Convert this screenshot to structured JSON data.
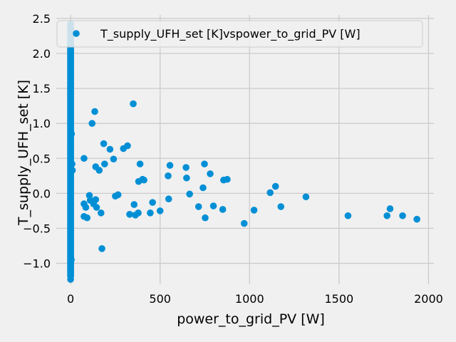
{
  "chart_data": {
    "type": "scatter",
    "xlabel": "power_to_grid_PV [W]",
    "ylabel": "T_supply_UFH_set [K]",
    "xlim": [
      -80,
      2030
    ],
    "ylim": [
      -1.3,
      2.55
    ],
    "xticks": [
      0,
      500,
      1000,
      1500,
      2000
    ],
    "yticks": [
      -1.0,
      -0.5,
      0.0,
      0.5,
      1.0,
      1.5,
      2.0,
      2.5
    ],
    "xtick_labels": [
      "0",
      "500",
      "1000",
      "1500",
      "2000"
    ],
    "ytick_labels": [
      "−1.0",
      "−0.5",
      "0.0",
      "0.5",
      "1.0",
      "1.5",
      "2.0",
      "2.5"
    ],
    "grid": true,
    "legend_position": "top-right",
    "background": "#f0f0f0",
    "grid_color": "#cbcbcb",
    "marker_color": "#008fd5",
    "series": [
      {
        "name": "T_supply_UFH_set [K]vspower_to_grid_PV [W]",
        "points": [
          [
            0,
            2.42
          ],
          [
            0,
            2.33
          ],
          [
            0,
            2.25
          ],
          [
            0,
            2.18
          ],
          [
            0,
            2.1
          ],
          [
            0,
            2.02
          ],
          [
            0,
            1.95
          ],
          [
            0,
            1.87
          ],
          [
            0,
            1.8
          ],
          [
            0,
            1.72
          ],
          [
            0,
            1.65
          ],
          [
            0,
            1.57
          ],
          [
            0,
            1.5
          ],
          [
            0,
            1.42
          ],
          [
            0,
            1.35
          ],
          [
            0,
            1.27
          ],
          [
            0,
            1.2
          ],
          [
            0,
            1.12
          ],
          [
            0,
            1.05
          ],
          [
            0,
            0.97
          ],
          [
            0,
            0.9
          ],
          [
            0,
            0.82
          ],
          [
            0,
            0.75
          ],
          [
            0,
            0.67
          ],
          [
            0,
            0.6
          ],
          [
            0,
            0.52
          ],
          [
            0,
            0.45
          ],
          [
            0,
            0.37
          ],
          [
            0,
            0.3
          ],
          [
            0,
            0.22
          ],
          [
            0,
            0.15
          ],
          [
            0,
            0.07
          ],
          [
            0,
            0.0
          ],
          [
            0,
            -0.08
          ],
          [
            0,
            -0.15
          ],
          [
            0,
            -0.23
          ],
          [
            0,
            -0.3
          ],
          [
            0,
            -0.38
          ],
          [
            0,
            -0.45
          ],
          [
            0,
            -0.53
          ],
          [
            0,
            -0.6
          ],
          [
            0,
            -0.68
          ],
          [
            0,
            -0.75
          ],
          [
            0,
            -0.83
          ],
          [
            0,
            -0.9
          ],
          [
            0,
            -0.98
          ],
          [
            0,
            -1.05
          ],
          [
            0,
            -1.12
          ],
          [
            0,
            -1.18
          ],
          [
            0,
            -1.23
          ],
          [
            5,
            0.85
          ],
          [
            8,
            0.42
          ],
          [
            10,
            0.33
          ],
          [
            4,
            -0.95
          ],
          [
            75,
            0.5
          ],
          [
            75,
            -0.15
          ],
          [
            75,
            -0.33
          ],
          [
            85,
            -0.2
          ],
          [
            92,
            -0.35
          ],
          [
            105,
            -0.03
          ],
          [
            110,
            -0.1
          ],
          [
            120,
            1.0
          ],
          [
            128,
            -0.15
          ],
          [
            135,
            1.17
          ],
          [
            140,
            0.38
          ],
          [
            140,
            -0.09
          ],
          [
            145,
            -0.2
          ],
          [
            160,
            0.33
          ],
          [
            170,
            -0.28
          ],
          [
            175,
            -0.79
          ],
          [
            185,
            0.71
          ],
          [
            190,
            0.42
          ],
          [
            220,
            0.63
          ],
          [
            240,
            0.49
          ],
          [
            250,
            -0.04
          ],
          [
            265,
            -0.02
          ],
          [
            295,
            0.64
          ],
          [
            318,
            0.68
          ],
          [
            330,
            -0.3
          ],
          [
            350,
            1.28
          ],
          [
            355,
            -0.16
          ],
          [
            362,
            -0.31
          ],
          [
            378,
            -0.28
          ],
          [
            380,
            0.17
          ],
          [
            388,
            0.42
          ],
          [
            402,
            0.2
          ],
          [
            410,
            0.19
          ],
          [
            445,
            -0.28
          ],
          [
            458,
            -0.13
          ],
          [
            500,
            -0.25
          ],
          [
            545,
            0.25
          ],
          [
            548,
            -0.08
          ],
          [
            555,
            0.4
          ],
          [
            645,
            0.37
          ],
          [
            648,
            0.22
          ],
          [
            665,
            -0.01
          ],
          [
            715,
            -0.19
          ],
          [
            740,
            0.08
          ],
          [
            748,
            0.42
          ],
          [
            752,
            -0.35
          ],
          [
            780,
            0.28
          ],
          [
            798,
            -0.18
          ],
          [
            850,
            -0.23
          ],
          [
            855,
            0.19
          ],
          [
            875,
            0.2
          ],
          [
            970,
            -0.43
          ],
          [
            1025,
            -0.24
          ],
          [
            1115,
            0.01
          ],
          [
            1145,
            0.1
          ],
          [
            1175,
            -0.19
          ],
          [
            1315,
            -0.05
          ],
          [
            1550,
            -0.32
          ],
          [
            1768,
            -0.32
          ],
          [
            1785,
            -0.22
          ],
          [
            1855,
            -0.32
          ],
          [
            1935,
            -0.37
          ]
        ]
      }
    ]
  }
}
